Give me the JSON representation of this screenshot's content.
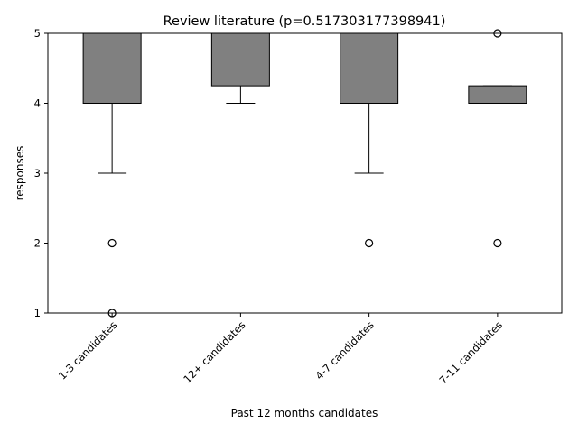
{
  "chart_data": {
    "type": "box",
    "title": "Review literature (p=0.517303177398941)",
    "xlabel": "Past 12 months candidates",
    "ylabel": "responses",
    "ylim": [
      1,
      5
    ],
    "yticks": [
      "1",
      "2",
      "3",
      "4",
      "5"
    ],
    "categories": [
      "1-3 candidates",
      "12+ candidates",
      "4-7 candidates",
      "7-11 candidates"
    ],
    "boxes": [
      {
        "q1": 4,
        "median": 5,
        "q3": 5,
        "whisker_low": 3,
        "whisker_high": 5,
        "outliers": [
          2,
          1
        ]
      },
      {
        "q1": 4.25,
        "median": 5,
        "q3": 5,
        "whisker_low": 4,
        "whisker_high": 5,
        "outliers": []
      },
      {
        "q1": 4,
        "median": 5,
        "q3": 5,
        "whisker_low": 3,
        "whisker_high": 5,
        "outliers": [
          2
        ]
      },
      {
        "q1": 4,
        "median": 4,
        "q3": 4.25,
        "whisker_low": 4,
        "whisker_high": 4.25,
        "outliers": [
          5,
          2
        ]
      }
    ],
    "box_color": "#808080",
    "grid": false,
    "legend": "none"
  }
}
